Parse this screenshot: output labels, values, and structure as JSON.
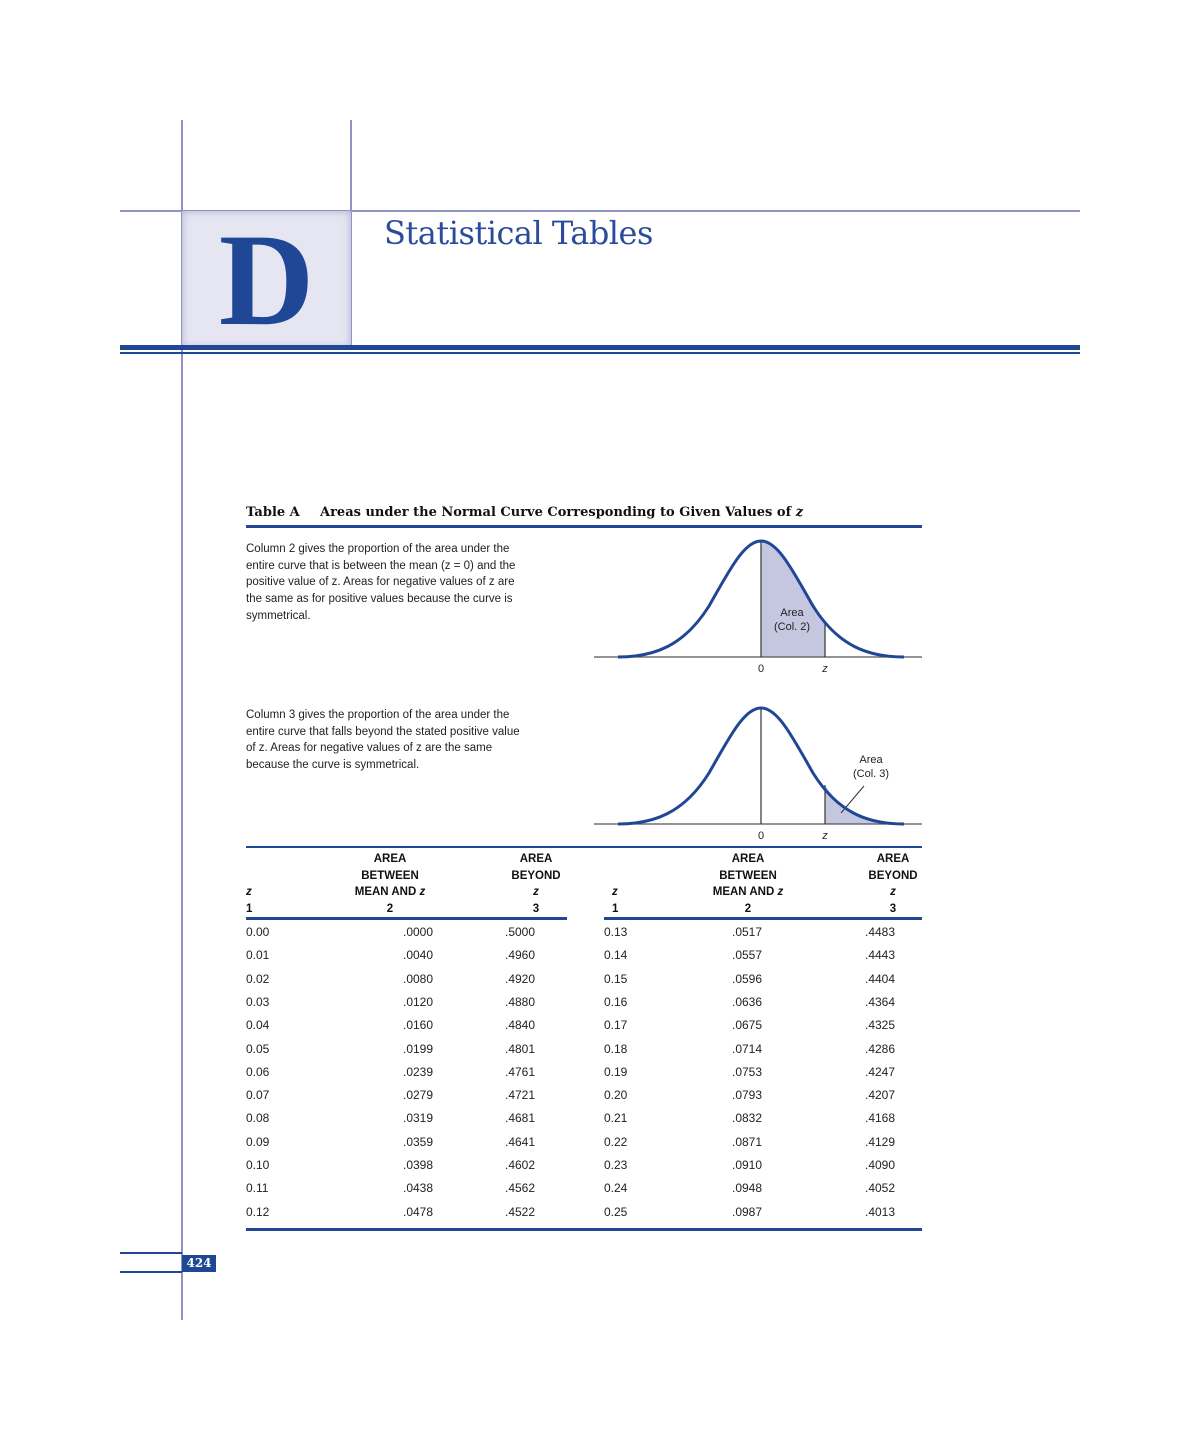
{
  "chapter": {
    "letter": "D",
    "title": "Statistical Tables"
  },
  "table": {
    "label": "Table A",
    "title_prefix": "Areas under the Normal Curve Corresponding to Given Values of ",
    "title_var": "z",
    "description_col2": "Column 2 gives the proportion of the area under the entire curve that is between the mean (z = 0) and the positive value of z. Areas for negative values of z are the same as for positive values because the curve is symmetrical.",
    "description_col3": "Column 3 gives the proportion of the area under the entire curve that falls beyond the stated positive value of z. Areas for negative values of z are the same because the curve is symmetrical.",
    "figure1": {
      "area_label_1": "Area",
      "area_label_2": "(Col. 2)",
      "axis_zero": "0",
      "axis_z": "z"
    },
    "figure2": {
      "area_label_1": "Area",
      "area_label_2": "(Col. 3)",
      "axis_zero": "0",
      "axis_z": "z"
    },
    "headers": {
      "col1": {
        "line1": "",
        "line2": "",
        "line3": "z",
        "num": "1"
      },
      "col2": {
        "line1": "AREA",
        "line2": "BETWEEN",
        "line3": "MEAN AND z",
        "num": "2"
      },
      "col3": {
        "line1": "AREA",
        "line2": "BEYOND",
        "line3": "z",
        "num": "3"
      }
    },
    "left_rows": [
      [
        "0.00",
        ".0000",
        ".5000"
      ],
      [
        "0.01",
        ".0040",
        ".4960"
      ],
      [
        "0.02",
        ".0080",
        ".4920"
      ],
      [
        "0.03",
        ".0120",
        ".4880"
      ],
      [
        "0.04",
        ".0160",
        ".4840"
      ],
      [
        "0.05",
        ".0199",
        ".4801"
      ],
      [
        "0.06",
        ".0239",
        ".4761"
      ],
      [
        "0.07",
        ".0279",
        ".4721"
      ],
      [
        "0.08",
        ".0319",
        ".4681"
      ],
      [
        "0.09",
        ".0359",
        ".4641"
      ],
      [
        "0.10",
        ".0398",
        ".4602"
      ],
      [
        "0.11",
        ".0438",
        ".4562"
      ],
      [
        "0.12",
        ".0478",
        ".4522"
      ]
    ],
    "right_rows": [
      [
        "0.13",
        ".0517",
        ".4483"
      ],
      [
        "0.14",
        ".0557",
        ".4443"
      ],
      [
        "0.15",
        ".0596",
        ".4404"
      ],
      [
        "0.16",
        ".0636",
        ".4364"
      ],
      [
        "0.17",
        ".0675",
        ".4325"
      ],
      [
        "0.18",
        ".0714",
        ".4286"
      ],
      [
        "0.19",
        ".0753",
        ".4247"
      ],
      [
        "0.20",
        ".0793",
        ".4207"
      ],
      [
        "0.21",
        ".0832",
        ".4168"
      ],
      [
        "0.22",
        ".0871",
        ".4129"
      ],
      [
        "0.23",
        ".0910",
        ".4090"
      ],
      [
        "0.24",
        ".0948",
        ".4052"
      ],
      [
        "0.25",
        ".0987",
        ".4013"
      ]
    ]
  },
  "page": {
    "number": "424"
  },
  "colors": {
    "accent": "#1f4796",
    "frame": "#8f94c4",
    "shade": "#c5c6e0",
    "box": "#e6e5f2"
  }
}
